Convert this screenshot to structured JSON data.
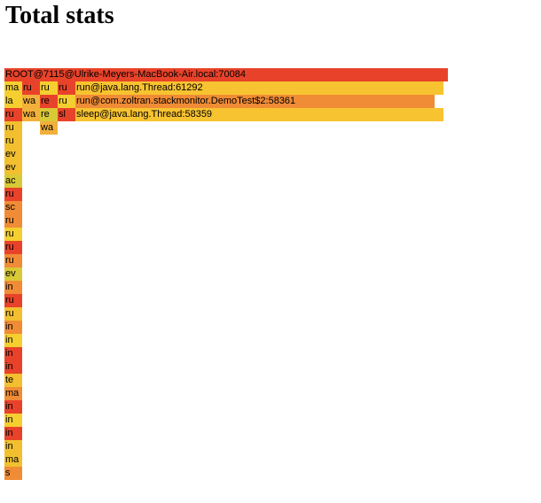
{
  "page": {
    "title": "Total stats"
  },
  "chart_data": {
    "type": "flamegraph",
    "frames": [
      {
        "depth": 0,
        "start": 0,
        "width": 100,
        "label": "ROOT@7115@Ulrike-Meyers-MacBook-Air.local:70084",
        "color": "#e8432a"
      },
      {
        "depth": 1,
        "start": 0,
        "width": 4,
        "label": "ma",
        "color": "#f5cf2f"
      },
      {
        "depth": 1,
        "start": 4,
        "width": 4,
        "label": "ru",
        "color": "#e8432a"
      },
      {
        "depth": 1,
        "start": 8,
        "width": 4,
        "label": "ru",
        "color": "#f5cf2f"
      },
      {
        "depth": 1,
        "start": 12,
        "width": 4,
        "label": "ru",
        "color": "#e8432a"
      },
      {
        "depth": 1,
        "start": 16,
        "width": 83,
        "label": "run@java.lang.Thread:61292",
        "color": "#f8c330"
      },
      {
        "depth": 2,
        "start": 0,
        "width": 4,
        "label": "la",
        "color": "#f5cf2f"
      },
      {
        "depth": 2,
        "start": 4,
        "width": 4,
        "label": "wa",
        "color": "#f2b03b"
      },
      {
        "depth": 2,
        "start": 8,
        "width": 4,
        "label": "re",
        "color": "#e8432a"
      },
      {
        "depth": 2,
        "start": 12,
        "width": 4,
        "label": "ru",
        "color": "#f5cf2f"
      },
      {
        "depth": 2,
        "start": 16,
        "width": 81,
        "label": "run@com.zoltran.stackmonitor.DemoTest$2:58361",
        "color": "#f08c35"
      },
      {
        "depth": 3,
        "start": 0,
        "width": 4,
        "label": "ru",
        "color": "#e8432a"
      },
      {
        "depth": 3,
        "start": 4,
        "width": 4,
        "label": "wa",
        "color": "#f2b03b"
      },
      {
        "depth": 3,
        "start": 8,
        "width": 4,
        "label": "re",
        "color": "#d8c936"
      },
      {
        "depth": 3,
        "start": 12,
        "width": 4,
        "label": "sl",
        "color": "#e8432a"
      },
      {
        "depth": 3,
        "start": 16,
        "width": 83,
        "label": "sleep@java.lang.Thread:58359",
        "color": "#f8c330"
      },
      {
        "depth": 4,
        "start": 0,
        "width": 4,
        "label": "ru",
        "color": "#f2c02f"
      },
      {
        "depth": 4,
        "start": 8,
        "width": 4,
        "label": "wa",
        "color": "#f2b03b"
      },
      {
        "depth": 5,
        "start": 0,
        "width": 4,
        "label": "ru",
        "color": "#f2c02f"
      },
      {
        "depth": 6,
        "start": 0,
        "width": 4,
        "label": "ev",
        "color": "#f2c02f"
      },
      {
        "depth": 7,
        "start": 0,
        "width": 4,
        "label": "ev",
        "color": "#f2c02f"
      },
      {
        "depth": 8,
        "start": 0,
        "width": 4,
        "label": "ac",
        "color": "#d8c936"
      },
      {
        "depth": 9,
        "start": 0,
        "width": 4,
        "label": "ru",
        "color": "#e8432a"
      },
      {
        "depth": 10,
        "start": 0,
        "width": 4,
        "label": "sc",
        "color": "#f08c35"
      },
      {
        "depth": 11,
        "start": 0,
        "width": 4,
        "label": "ru",
        "color": "#f08c35"
      },
      {
        "depth": 12,
        "start": 0,
        "width": 4,
        "label": "ru",
        "color": "#f5cf2f"
      },
      {
        "depth": 13,
        "start": 0,
        "width": 4,
        "label": "ru",
        "color": "#e8432a"
      },
      {
        "depth": 14,
        "start": 0,
        "width": 4,
        "label": "ru",
        "color": "#f08c35"
      },
      {
        "depth": 15,
        "start": 0,
        "width": 4,
        "label": "ev",
        "color": "#d8c936"
      },
      {
        "depth": 16,
        "start": 0,
        "width": 4,
        "label": "in",
        "color": "#f08c35"
      },
      {
        "depth": 17,
        "start": 0,
        "width": 4,
        "label": "ru",
        "color": "#e8432a"
      },
      {
        "depth": 18,
        "start": 0,
        "width": 4,
        "label": "ru",
        "color": "#f2c02f"
      },
      {
        "depth": 19,
        "start": 0,
        "width": 4,
        "label": "in",
        "color": "#f08c35"
      },
      {
        "depth": 20,
        "start": 0,
        "width": 4,
        "label": "in",
        "color": "#f5cf2f"
      },
      {
        "depth": 21,
        "start": 0,
        "width": 4,
        "label": "in",
        "color": "#e8432a"
      },
      {
        "depth": 22,
        "start": 0,
        "width": 4,
        "label": "in",
        "color": "#e8432a"
      },
      {
        "depth": 23,
        "start": 0,
        "width": 4,
        "label": "te",
        "color": "#f2c02f"
      },
      {
        "depth": 24,
        "start": 0,
        "width": 4,
        "label": "ma",
        "color": "#f08c35"
      },
      {
        "depth": 25,
        "start": 0,
        "width": 4,
        "label": "in",
        "color": "#e8432a"
      },
      {
        "depth": 26,
        "start": 0,
        "width": 4,
        "label": "in",
        "color": "#f5cf2f"
      },
      {
        "depth": 27,
        "start": 0,
        "width": 4,
        "label": "in",
        "color": "#e8432a"
      },
      {
        "depth": 28,
        "start": 0,
        "width": 4,
        "label": "in",
        "color": "#f2c02f"
      },
      {
        "depth": 29,
        "start": 0,
        "width": 4,
        "label": "ma",
        "color": "#f2c02f"
      },
      {
        "depth": 30,
        "start": 0,
        "width": 4,
        "label": "s",
        "color": "#f08c35"
      }
    ]
  }
}
